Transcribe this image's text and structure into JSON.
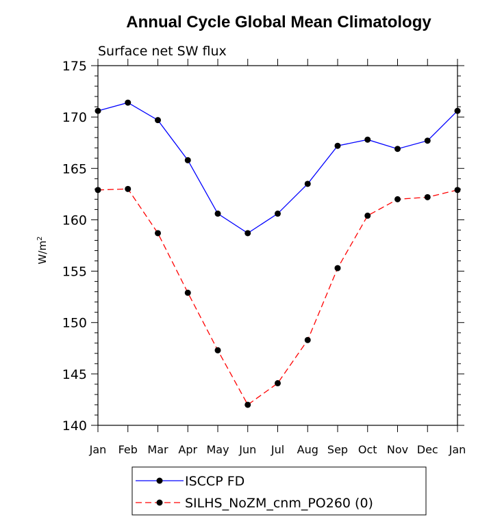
{
  "chart_data": {
    "type": "line",
    "title": "Annual Cycle Global Mean Climatology",
    "subtitle": "Surface net SW flux",
    "xlabel": "",
    "ylabel": "W/m",
    "ylabel_sup": "2",
    "ylim": [
      140,
      175
    ],
    "yticks": [
      140,
      145,
      150,
      155,
      160,
      165,
      170,
      175
    ],
    "categories": [
      "Jan",
      "Feb",
      "Mar",
      "Apr",
      "May",
      "Jun",
      "Jul",
      "Aug",
      "Sep",
      "Oct",
      "Nov",
      "Dec",
      "Jan"
    ],
    "series": [
      {
        "name": "ISCCP FD",
        "color": "#0000ff",
        "dash": "solid",
        "values": [
          170.6,
          171.4,
          169.7,
          165.8,
          160.6,
          158.7,
          160.6,
          163.5,
          167.2,
          167.8,
          166.9,
          167.7,
          170.6
        ]
      },
      {
        "name": "SILHS_NoZM_cnm_PO260 (0)",
        "color": "#ff0000",
        "dash": "dashed",
        "values": [
          162.9,
          163.0,
          158.7,
          152.9,
          147.3,
          142.0,
          144.1,
          148.3,
          155.3,
          160.4,
          162.0,
          162.2,
          162.9
        ]
      }
    ],
    "legend": "bottom"
  }
}
